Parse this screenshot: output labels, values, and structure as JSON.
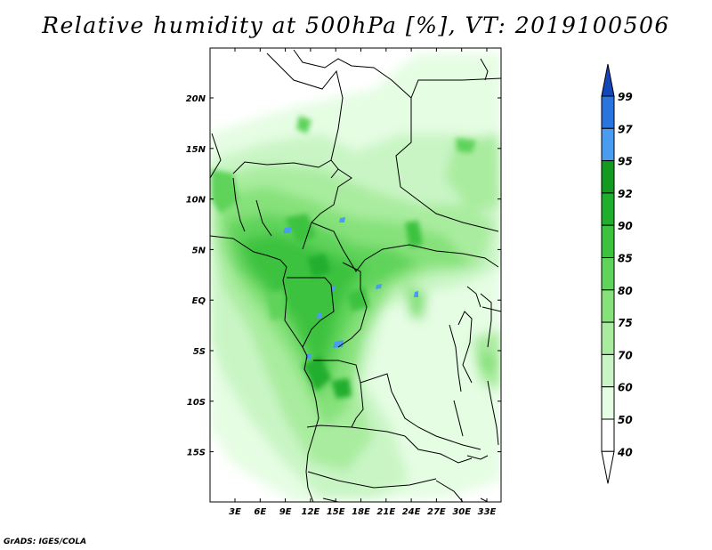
{
  "title": "Relative humidity at 500hPa [%], VT: 2019100506",
  "credit": "GrADS: IGES/COLA",
  "lat_labels": [
    "20N",
    "15N",
    "10N",
    "5N",
    "EQ",
    "5S",
    "10S",
    "15S"
  ],
  "lon_labels": [
    "3E",
    "6E",
    "9E",
    "12E",
    "15E",
    "18E",
    "21E",
    "24E",
    "27E",
    "30E",
    "33E"
  ],
  "colorbar": {
    "levels": [
      "99",
      "97",
      "95",
      "92",
      "90",
      "85",
      "80",
      "75",
      "70",
      "60",
      "50",
      "40"
    ],
    "colors": [
      "#ffffff",
      "#e5fde3",
      "#c9f5c5",
      "#a9ec9f",
      "#86e17a",
      "#5fd35a",
      "#3dc23f",
      "#20ae2d",
      "#139a21",
      "#4a9cf0",
      "#2a74e0",
      "#1346b8"
    ]
  },
  "map_fill_colors": [
    "#e5fde3",
    "#c9f5c5",
    "#a9ec9f",
    "#86e17a",
    "#5fd35a",
    "#3dc23f",
    "#20ae2d",
    "#4a9cf0"
  ]
}
